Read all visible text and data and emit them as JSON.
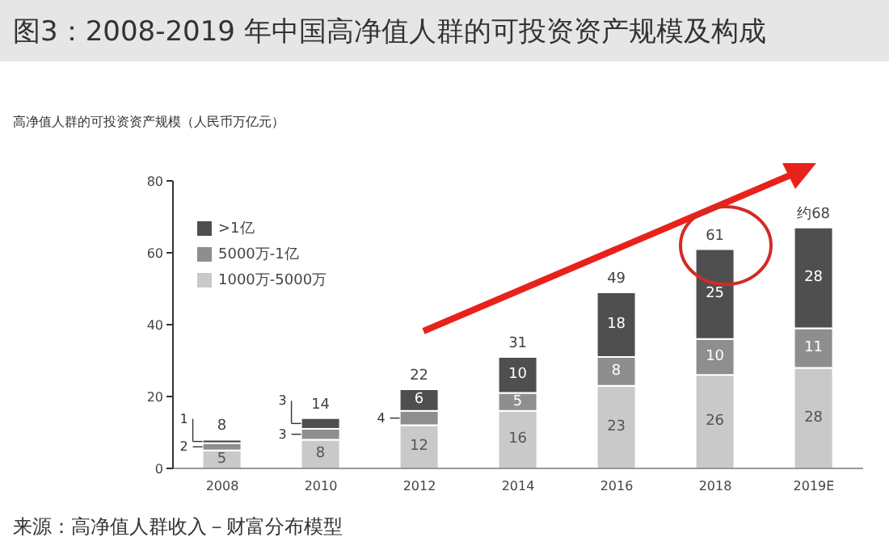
{
  "chart_data": {
    "type": "bar",
    "title": "图3：2008-2019 年中国高净值人群的可投资资产规模及构成",
    "ylabel": "高净值人群的可投资资产规模（人民币万亿元）",
    "categories": [
      "2008",
      "2010",
      "2012",
      "2014",
      "2016",
      "2018",
      "2019E"
    ],
    "stacked": true,
    "series": [
      {
        "name": "1000万-5000万",
        "color": "#c9c9c9",
        "values": [
          5,
          8,
          12,
          16,
          23,
          26,
          28
        ]
      },
      {
        "name": "5000万-1亿",
        "color": "#8e8e8e",
        "values": [
          2,
          3,
          4,
          5,
          8,
          10,
          11
        ]
      },
      {
        "name": ">1亿",
        "color": "#4f4f4f",
        "values": [
          1,
          3,
          6,
          10,
          18,
          25,
          28
        ]
      }
    ],
    "totals": [
      "8",
      "14",
      "22",
      "31",
      "49",
      "61",
      "约68"
    ],
    "data_labels": true,
    "ylim": [
      0,
      80
    ],
    "yticks": [
      0,
      20,
      40,
      60,
      80
    ],
    "grid": false,
    "legend": "top left",
    "annotations": [
      "来源：高净值人群收入－财富分布模型"
    ]
  }
}
